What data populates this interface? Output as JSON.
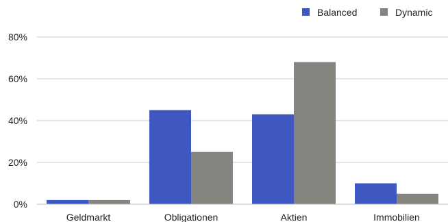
{
  "chart_data": {
    "type": "bar",
    "categories": [
      "Geldmarkt",
      "Obligationen",
      "Aktien",
      "Immobilien"
    ],
    "series": [
      {
        "name": "Balanced",
        "color": "#3F57C1",
        "values": [
          2,
          45,
          43,
          10
        ]
      },
      {
        "name": "Dynamic",
        "color": "#858580",
        "values": [
          2,
          25,
          68,
          5
        ]
      }
    ],
    "ylim": [
      0,
      80
    ],
    "yticks": [
      0,
      20,
      40,
      60,
      80
    ],
    "ytick_labels": [
      "0%",
      "20%",
      "40%",
      "60%",
      "80%"
    ],
    "grid": true,
    "gridline_color": "#C8C8C8",
    "legend_position": "top-right",
    "title": "",
    "xlabel": "",
    "ylabel": ""
  }
}
